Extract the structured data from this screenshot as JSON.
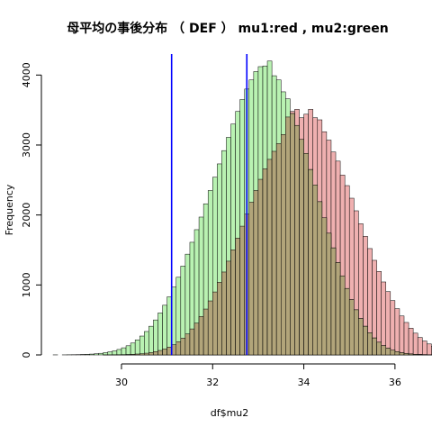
{
  "chart_data": {
    "type": "bar",
    "title": "母平均の事後分布 （ DEF ） mu1:red , mu2:green",
    "xlabel": "df$mu2",
    "ylabel": "Frequency",
    "xlim": [
      28.4,
      36.3
    ],
    "ylim": [
      0,
      4300
    ],
    "x_ticks": [
      30,
      32,
      34,
      36
    ],
    "y_ticks": [
      0,
      1000,
      2000,
      3000,
      4000
    ],
    "bin_width": 0.1,
    "grid": false,
    "colors": {
      "green_fill": "#b9f2b2",
      "red_fill": "#efb0b0",
      "overlap_fill": "#b2a57a",
      "bar_stroke": "#000000",
      "vline": "#0000ff"
    },
    "series": [
      {
        "color": "green",
        "bin_start": 28.5,
        "values": [
          1,
          0,
          1,
          2,
          3,
          4,
          6,
          8,
          12,
          17,
          23,
          33,
          44,
          58,
          78,
          102,
          131,
          170,
          215,
          270,
          335,
          410,
          500,
          600,
          710,
          830,
          970,
          1110,
          1270,
          1440,
          1610,
          1790,
          1970,
          2160,
          2350,
          2540,
          2730,
          2920,
          3110,
          3300,
          3480,
          3650,
          3800,
          3930,
          4050,
          4120,
          4130,
          4200,
          3990,
          3930,
          3760,
          3660,
          3450,
          3280,
          3080,
          2880,
          2650,
          2430,
          2190,
          1960,
          1740,
          1530,
          1320,
          1130,
          950,
          790,
          645,
          520,
          410,
          318,
          243,
          182,
          133,
          96,
          68,
          47,
          32,
          21,
          14,
          9,
          6,
          4,
          2,
          1,
          1
        ]
      },
      {
        "color": "red",
        "bin_start": 29.6,
        "values": [
          1,
          1,
          2,
          3,
          4,
          6,
          9,
          13,
          18,
          25,
          35,
          48,
          64,
          85,
          112,
          146,
          189,
          240,
          300,
          372,
          455,
          550,
          656,
          772,
          900,
          1038,
          1185,
          1340,
          1502,
          1670,
          1840,
          2012,
          2183,
          2350,
          2510,
          2660,
          2795,
          2910,
          3020,
          3150,
          3400,
          3480,
          3510,
          3390,
          3440,
          3510,
          3390,
          3360,
          3190,
          3070,
          2900,
          2770,
          2570,
          2420,
          2240,
          2060,
          1875,
          1695,
          1520,
          1352,
          1193,
          1043,
          905,
          777,
          661,
          557,
          464,
          382,
          311,
          250,
          199,
          157,
          122,
          94,
          71,
          53,
          39,
          29,
          21,
          15,
          11,
          8,
          5,
          3,
          2,
          1,
          1
        ]
      }
    ],
    "vlines": [
      31.1,
      32.75
    ]
  }
}
